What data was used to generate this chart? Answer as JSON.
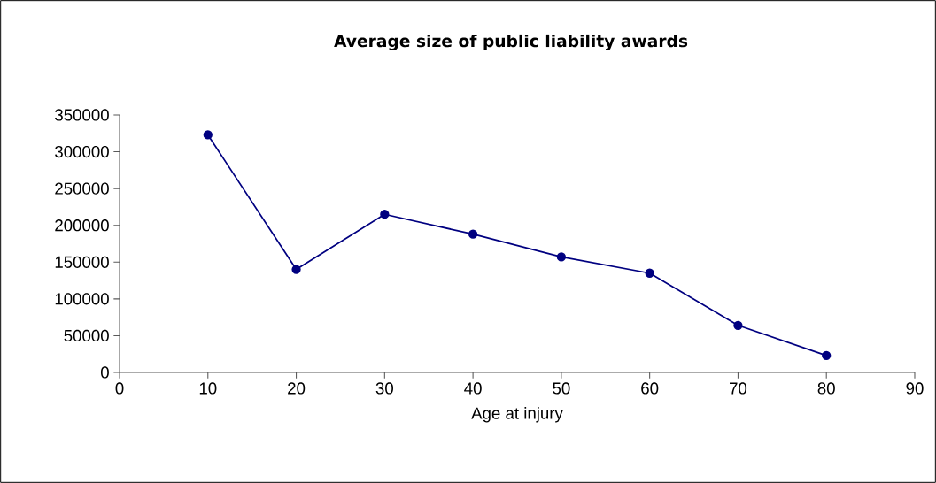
{
  "chart_data": {
    "type": "line",
    "title": "Average size of public liability awards",
    "xlabel": "Age at injury",
    "x": [
      10,
      20,
      30,
      40,
      50,
      60,
      70,
      80
    ],
    "series": [
      {
        "color": "#000080",
        "values": [
          323000,
          140000,
          215000,
          188000,
          157000,
          135000,
          64000,
          23000
        ]
      }
    ],
    "xlim": [
      0,
      90
    ],
    "xticks": [
      0,
      10,
      20,
      30,
      40,
      50,
      60,
      70,
      80,
      90
    ],
    "ylim": [
      0,
      350000
    ],
    "yticks": [
      0,
      50000,
      100000,
      150000,
      200000,
      250000,
      300000,
      350000
    ],
    "marker": "circle",
    "line_style": "solid",
    "grid": false
  }
}
